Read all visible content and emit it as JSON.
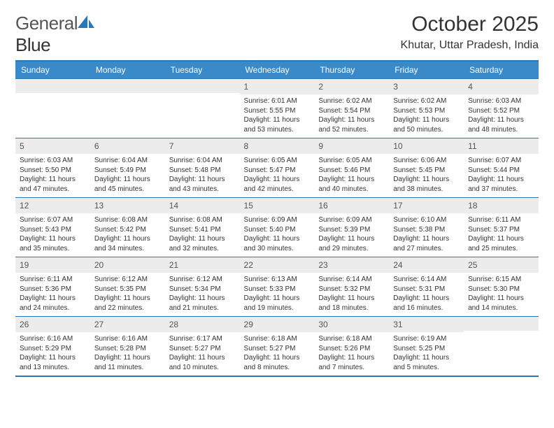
{
  "logo": {
    "word1": "General",
    "word2": "Blue"
  },
  "title": "October 2025",
  "location": "Khutar, Uttar Pradesh, India",
  "colors": {
    "header_bg": "#3a8ac9",
    "header_text": "#ffffff",
    "border": "#2b78b8",
    "daynum_bg": "#ececec",
    "text": "#333333"
  },
  "days_header": [
    "Sunday",
    "Monday",
    "Tuesday",
    "Wednesday",
    "Thursday",
    "Friday",
    "Saturday"
  ],
  "weeks": [
    [
      {},
      {},
      {},
      {
        "n": "1",
        "sr": "6:01 AM",
        "ss": "5:55 PM",
        "dl": "11 hours and 53 minutes."
      },
      {
        "n": "2",
        "sr": "6:02 AM",
        "ss": "5:54 PM",
        "dl": "11 hours and 52 minutes."
      },
      {
        "n": "3",
        "sr": "6:02 AM",
        "ss": "5:53 PM",
        "dl": "11 hours and 50 minutes."
      },
      {
        "n": "4",
        "sr": "6:03 AM",
        "ss": "5:52 PM",
        "dl": "11 hours and 48 minutes."
      }
    ],
    [
      {
        "n": "5",
        "sr": "6:03 AM",
        "ss": "5:50 PM",
        "dl": "11 hours and 47 minutes."
      },
      {
        "n": "6",
        "sr": "6:04 AM",
        "ss": "5:49 PM",
        "dl": "11 hours and 45 minutes."
      },
      {
        "n": "7",
        "sr": "6:04 AM",
        "ss": "5:48 PM",
        "dl": "11 hours and 43 minutes."
      },
      {
        "n": "8",
        "sr": "6:05 AM",
        "ss": "5:47 PM",
        "dl": "11 hours and 42 minutes."
      },
      {
        "n": "9",
        "sr": "6:05 AM",
        "ss": "5:46 PM",
        "dl": "11 hours and 40 minutes."
      },
      {
        "n": "10",
        "sr": "6:06 AM",
        "ss": "5:45 PM",
        "dl": "11 hours and 38 minutes."
      },
      {
        "n": "11",
        "sr": "6:07 AM",
        "ss": "5:44 PM",
        "dl": "11 hours and 37 minutes."
      }
    ],
    [
      {
        "n": "12",
        "sr": "6:07 AM",
        "ss": "5:43 PM",
        "dl": "11 hours and 35 minutes."
      },
      {
        "n": "13",
        "sr": "6:08 AM",
        "ss": "5:42 PM",
        "dl": "11 hours and 34 minutes."
      },
      {
        "n": "14",
        "sr": "6:08 AM",
        "ss": "5:41 PM",
        "dl": "11 hours and 32 minutes."
      },
      {
        "n": "15",
        "sr": "6:09 AM",
        "ss": "5:40 PM",
        "dl": "11 hours and 30 minutes."
      },
      {
        "n": "16",
        "sr": "6:09 AM",
        "ss": "5:39 PM",
        "dl": "11 hours and 29 minutes."
      },
      {
        "n": "17",
        "sr": "6:10 AM",
        "ss": "5:38 PM",
        "dl": "11 hours and 27 minutes."
      },
      {
        "n": "18",
        "sr": "6:11 AM",
        "ss": "5:37 PM",
        "dl": "11 hours and 25 minutes."
      }
    ],
    [
      {
        "n": "19",
        "sr": "6:11 AM",
        "ss": "5:36 PM",
        "dl": "11 hours and 24 minutes."
      },
      {
        "n": "20",
        "sr": "6:12 AM",
        "ss": "5:35 PM",
        "dl": "11 hours and 22 minutes."
      },
      {
        "n": "21",
        "sr": "6:12 AM",
        "ss": "5:34 PM",
        "dl": "11 hours and 21 minutes."
      },
      {
        "n": "22",
        "sr": "6:13 AM",
        "ss": "5:33 PM",
        "dl": "11 hours and 19 minutes."
      },
      {
        "n": "23",
        "sr": "6:14 AM",
        "ss": "5:32 PM",
        "dl": "11 hours and 18 minutes."
      },
      {
        "n": "24",
        "sr": "6:14 AM",
        "ss": "5:31 PM",
        "dl": "11 hours and 16 minutes."
      },
      {
        "n": "25",
        "sr": "6:15 AM",
        "ss": "5:30 PM",
        "dl": "11 hours and 14 minutes."
      }
    ],
    [
      {
        "n": "26",
        "sr": "6:16 AM",
        "ss": "5:29 PM",
        "dl": "11 hours and 13 minutes."
      },
      {
        "n": "27",
        "sr": "6:16 AM",
        "ss": "5:28 PM",
        "dl": "11 hours and 11 minutes."
      },
      {
        "n": "28",
        "sr": "6:17 AM",
        "ss": "5:27 PM",
        "dl": "11 hours and 10 minutes."
      },
      {
        "n": "29",
        "sr": "6:18 AM",
        "ss": "5:27 PM",
        "dl": "11 hours and 8 minutes."
      },
      {
        "n": "30",
        "sr": "6:18 AM",
        "ss": "5:26 PM",
        "dl": "11 hours and 7 minutes."
      },
      {
        "n": "31",
        "sr": "6:19 AM",
        "ss": "5:25 PM",
        "dl": "11 hours and 5 minutes."
      },
      {}
    ]
  ],
  "labels": {
    "sunrise": "Sunrise:",
    "sunset": "Sunset:",
    "daylight": "Daylight:"
  }
}
